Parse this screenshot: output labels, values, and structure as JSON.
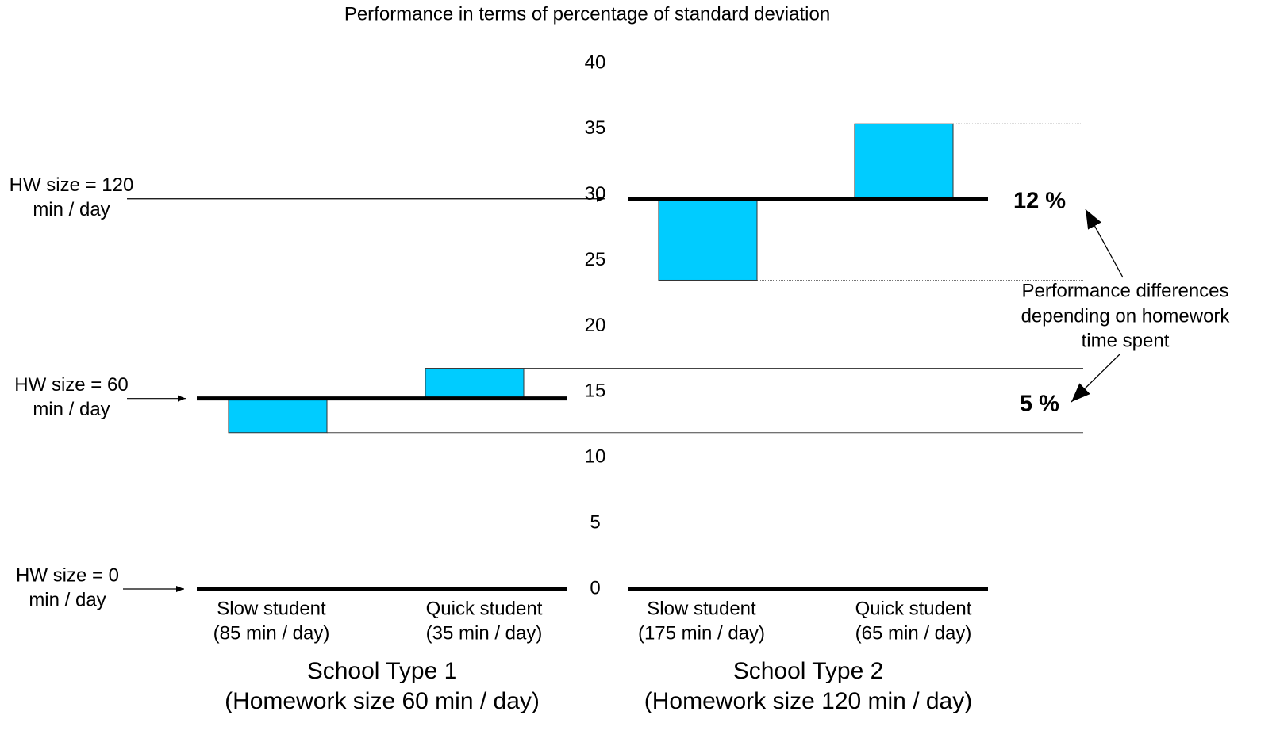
{
  "chart_data": {
    "type": "floating_bar",
    "title": "Performance in terms of percentage of standard deviation",
    "ylim": [
      0,
      40
    ],
    "yticks": [
      0,
      5,
      10,
      15,
      20,
      25,
      30,
      35,
      40
    ],
    "color": "#00ccff",
    "hw_levels": [
      {
        "label": [
          "HW size = 0",
          "min / day"
        ],
        "value": 0
      },
      {
        "label": [
          "HW size = 60",
          "min / day"
        ],
        "value": 14.5
      },
      {
        "label": [
          "HW size = 120",
          "min / day"
        ],
        "value": 29.7
      }
    ],
    "groups": [
      {
        "label": [
          "School Type 1",
          "(Homework size 60 min / day)"
        ],
        "baseline": 14.5,
        "categories": [
          [
            "Slow student",
            "(85 min / day)"
          ],
          [
            "Quick student",
            "(35 min / day)"
          ]
        ],
        "values": [
          11.9,
          16.8
        ]
      },
      {
        "label": [
          "School Type 2",
          "(Homework size 120 min / day)"
        ],
        "baseline": 29.7,
        "categories": [
          [
            "Slow student",
            "(175 min / day)"
          ],
          [
            "Quick student",
            "(65 min / day)"
          ]
        ],
        "values": [
          23.5,
          35.4
        ]
      }
    ],
    "annotations": {
      "differences": [
        "12 %",
        "5 %"
      ],
      "note": [
        "Performance differences",
        "depending on homework",
        "time spent"
      ]
    }
  }
}
